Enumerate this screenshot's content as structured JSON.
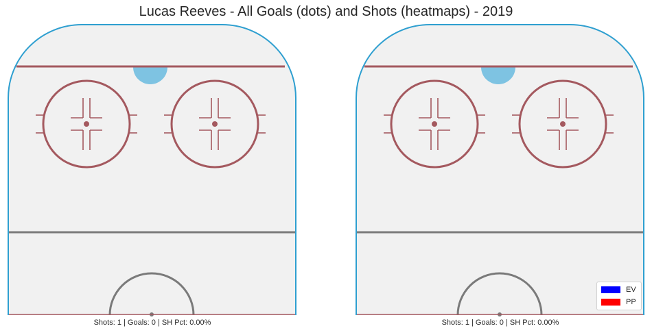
{
  "title": "Lucas Reeves - All Goals (dots) and Shots (heatmaps) - 2019",
  "colors": {
    "ice": "#f1f1f1",
    "boards": "#2e9fd0",
    "red_line": "#a4595f",
    "blue_line": "#7a7a7a",
    "crease": "#7ec3e2",
    "ev": "#0000ff",
    "pp": "#ff0000"
  },
  "legend": {
    "items": [
      {
        "label": "EV",
        "color": "#0000ff"
      },
      {
        "label": "PP",
        "color": "#ff0000"
      }
    ]
  },
  "panels": [
    {
      "caption": "Shots: 1 | Goals: 0 | SH Pct: 0.00%"
    },
    {
      "caption": "Shots: 1 | Goals: 0 | SH Pct: 0.00%"
    }
  ],
  "chart_data": [
    {
      "type": "heatmap",
      "caption": "Shots: 1 | Goals: 0 | SH Pct: 0.00%",
      "shots": 1,
      "goals": 0,
      "sh_pct": 0.0,
      "goal_points": []
    },
    {
      "type": "heatmap",
      "caption": "Shots: 1 | Goals: 0 | SH Pct: 0.00%",
      "shots": 1,
      "goals": 0,
      "sh_pct": 0.0,
      "goal_points": [],
      "legend": [
        "EV",
        "PP"
      ]
    }
  ]
}
